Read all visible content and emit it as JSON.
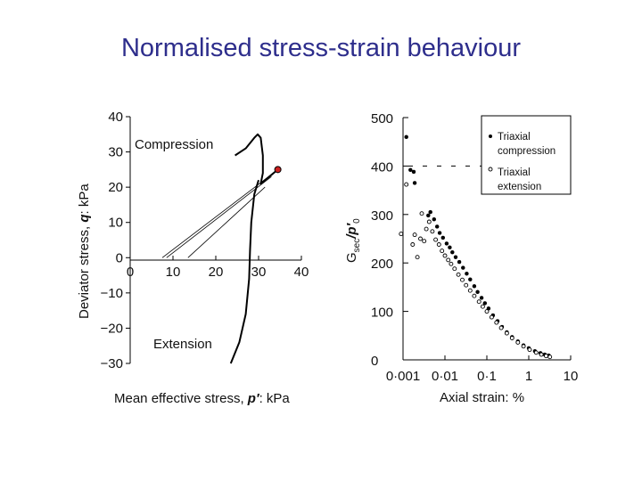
{
  "title": "Normalised stress-strain behaviour",
  "chart_data": [
    {
      "type": "line",
      "xlabel": "Mean effective stress,",
      "xlabel_symbol": "p′",
      "xlabel_unit": ": kPa",
      "ylabel": "Deviator stress,",
      "ylabel_symbol": "q",
      "ylabel_unit": ": kPa",
      "xlim": [
        0,
        40
      ],
      "ylim": [
        -30,
        40
      ],
      "xticks": [
        "0",
        "10",
        "20",
        "30",
        "40"
      ],
      "yticks": [
        "−30",
        "−20",
        "−10",
        "0",
        "10",
        "20",
        "30",
        "40"
      ],
      "annotations": [
        "Compression",
        "Extension"
      ],
      "series": [
        {
          "label": "compression",
          "points": [
            [
              24.5,
              29
            ],
            [
              27,
              31
            ],
            [
              29,
              34
            ],
            [
              29.8,
              35
            ],
            [
              30.5,
              34
            ],
            [
              31,
              29
            ],
            [
              31,
              24
            ],
            [
              30.5,
              21
            ],
            [
              31.5,
              22
            ],
            [
              33,
              23.5
            ],
            [
              34.5,
              25
            ]
          ]
        },
        {
          "label": "extension",
          "points": [
            [
              30,
              22
            ],
            [
              29,
              18
            ],
            [
              28.3,
              10
            ],
            [
              28,
              2
            ],
            [
              27.8,
              -6
            ],
            [
              27,
              -16
            ],
            [
              25.5,
              -24
            ],
            [
              23.5,
              -30
            ]
          ]
        },
        {
          "label": "line1",
          "points": [
            [
              7.5,
              0
            ],
            [
              34.5,
              25
            ]
          ]
        },
        {
          "label": "line2",
          "points": [
            [
              8.5,
              0
            ],
            [
              33,
              23
            ]
          ]
        },
        {
          "label": "line3",
          "points": [
            [
              13.5,
              0
            ],
            [
              31.5,
              20
            ]
          ]
        }
      ],
      "marker": {
        "x": 34.5,
        "y": 25,
        "color": "#cc2020"
      }
    },
    {
      "type": "scatter",
      "xlabel": "Axial strain: %",
      "ylabel": "G",
      "ylabel_sub": "sec",
      "ylabel_rest": "/p′",
      "ylabel_sub2": "0",
      "xscale": "log",
      "xlim": [
        0.001,
        10
      ],
      "ylim": [
        0,
        500
      ],
      "xticks": [
        "0·001",
        "0·01",
        "0·1",
        "1",
        "10"
      ],
      "yticks": [
        "0",
        "100",
        "200",
        "300",
        "400",
        "500"
      ],
      "legend": [
        "Triaxial compression",
        "Triaxial extension"
      ],
      "series": [
        {
          "name": "Triaxial compression",
          "marker": "filled",
          "points": [
            [
              0.0012,
              460
            ],
            [
              0.0015,
              392
            ],
            [
              0.0018,
              388
            ],
            [
              0.0019,
              365
            ],
            [
              0.004,
              298
            ],
            [
              0.0045,
              305
            ],
            [
              0.0055,
              290
            ],
            [
              0.0065,
              275
            ],
            [
              0.0075,
              262
            ],
            [
              0.009,
              252
            ],
            [
              0.011,
              240
            ],
            [
              0.013,
              232
            ],
            [
              0.015,
              222
            ],
            [
              0.018,
              212
            ],
            [
              0.022,
              202
            ],
            [
              0.027,
              190
            ],
            [
              0.033,
              178
            ],
            [
              0.04,
              166
            ],
            [
              0.05,
              152
            ],
            [
              0.06,
              140
            ],
            [
              0.075,
              128
            ],
            [
              0.09,
              117
            ],
            [
              0.11,
              106
            ],
            [
              0.14,
              92
            ],
            [
              0.18,
              80
            ],
            [
              0.23,
              68
            ],
            [
              0.3,
              57
            ],
            [
              0.4,
              47
            ],
            [
              0.55,
              38
            ],
            [
              0.75,
              30
            ],
            [
              1.0,
              24
            ],
            [
              1.4,
              18
            ],
            [
              1.9,
              14
            ],
            [
              2.4,
              11
            ],
            [
              3.0,
              9
            ]
          ]
        },
        {
          "name": "Triaxial extension",
          "marker": "open",
          "points": [
            [
              0.0009,
              260
            ],
            [
              0.0012,
              362
            ],
            [
              0.0017,
              238
            ],
            [
              0.0019,
              258
            ],
            [
              0.0022,
              212
            ],
            [
              0.0026,
              250
            ],
            [
              0.0028,
              302
            ],
            [
              0.0032,
              245
            ],
            [
              0.0036,
              270
            ],
            [
              0.0042,
              285
            ],
            [
              0.005,
              265
            ],
            [
              0.006,
              248
            ],
            [
              0.0072,
              238
            ],
            [
              0.0085,
              225
            ],
            [
              0.01,
              215
            ],
            [
              0.012,
              206
            ],
            [
              0.014,
              198
            ],
            [
              0.017,
              188
            ],
            [
              0.021,
              176
            ],
            [
              0.026,
              165
            ],
            [
              0.032,
              154
            ],
            [
              0.04,
              143
            ],
            [
              0.05,
              132
            ],
            [
              0.065,
              120
            ],
            [
              0.08,
              110
            ],
            [
              0.1,
              100
            ],
            [
              0.13,
              88
            ],
            [
              0.17,
              77
            ],
            [
              0.22,
              66
            ],
            [
              0.3,
              55
            ],
            [
              0.4,
              45
            ],
            [
              0.55,
              36
            ],
            [
              0.75,
              28
            ],
            [
              1.05,
              21
            ],
            [
              1.5,
              15
            ],
            [
              2.0,
              11
            ],
            [
              2.6,
              8
            ],
            [
              3.2,
              6
            ]
          ]
        }
      ]
    }
  ]
}
